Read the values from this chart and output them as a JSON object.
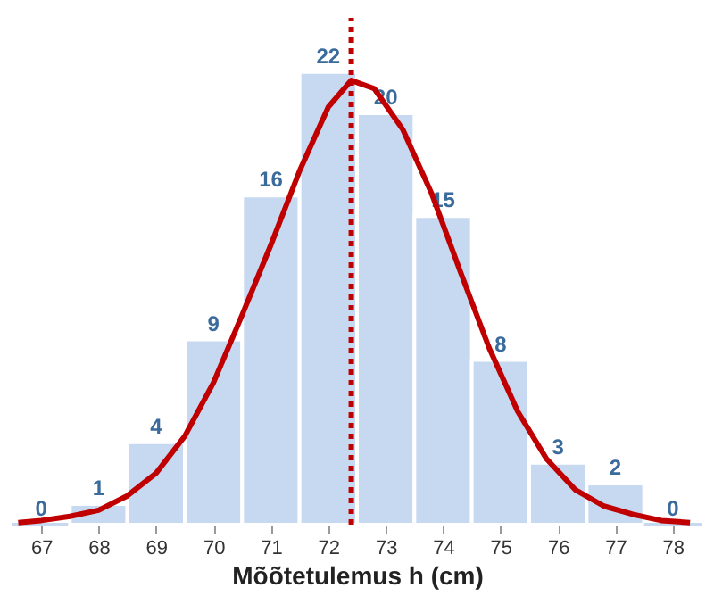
{
  "chart_data": {
    "type": "histogram",
    "xlabel": "Mõõtetulemus h (cm)",
    "bins": [
      66.5,
      67.5,
      68.5,
      69.5,
      70.5,
      71.5,
      72.5,
      73.5,
      74.5,
      75.5,
      76.5,
      77.5,
      78.5
    ],
    "values": [
      0,
      1,
      4,
      9,
      16,
      22,
      20,
      15,
      8,
      3,
      2,
      0
    ],
    "color": "#c6d9f0",
    "value_labels": [
      "0",
      "1",
      "4",
      "9",
      "16",
      "22",
      "20",
      "15",
      "8",
      "3",
      "2",
      "0"
    ],
    "xlim": [
      66.5,
      78.5
    ],
    "xticks": [
      67,
      68,
      69,
      70,
      71,
      72,
      73,
      74,
      75,
      76,
      77,
      78
    ],
    "tick_labels": "x",
    "series": [
      {
        "type": "line",
        "color": "#c00000",
        "x": [
          66.6,
          67,
          67.5,
          68,
          68.5,
          69,
          69.5,
          70,
          70.5,
          71,
          71.5,
          72,
          72.4,
          72.8,
          73.3,
          73.8,
          74.3,
          74.8,
          75.3,
          75.8,
          76.3,
          76.8,
          77.3,
          77.8,
          78.3
        ],
        "values": [
          0.1,
          0.2,
          0.4,
          0.7,
          1.4,
          2.5,
          4.3,
          6.9,
          10.2,
          13.6,
          17.2,
          20.3,
          21.6,
          21.2,
          19.2,
          16.1,
          12.3,
          8.6,
          5.5,
          3.2,
          1.7,
          0.9,
          0.5,
          0.2,
          0.1
        ]
      }
    ],
    "ref_lines": [
      {
        "axis": "x",
        "value": 72.4,
        "color": "#c00000",
        "line_style": "dotted"
      }
    ]
  }
}
